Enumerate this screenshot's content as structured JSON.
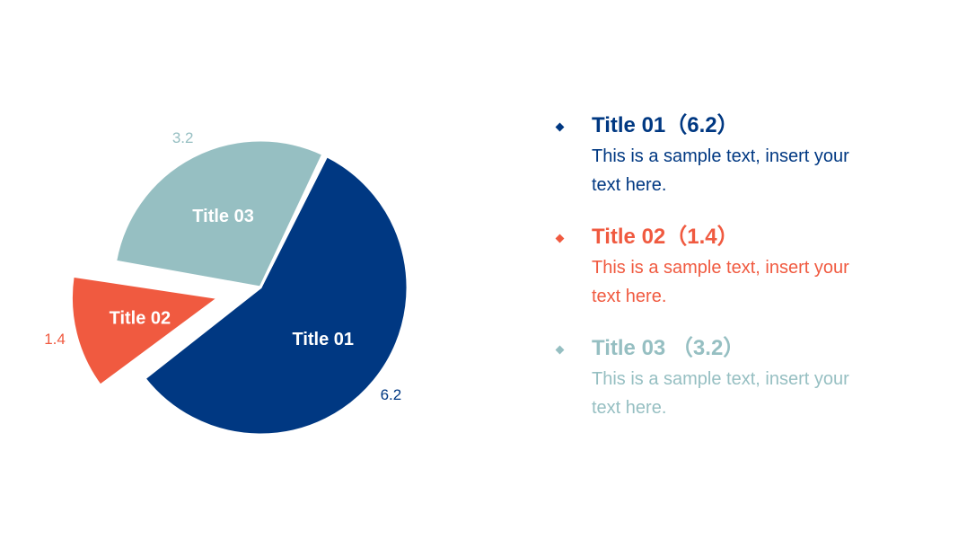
{
  "chart_data": {
    "type": "pie",
    "categories": [
      "Title 01",
      "Title 02",
      "Title 03"
    ],
    "values": [
      6.2,
      1.4,
      3.2
    ],
    "value_labels": [
      "6.2",
      "1.4",
      "3.2"
    ],
    "colors": [
      "#003882",
      "#F05A40",
      "#96BFC2"
    ],
    "exploded": [
      false,
      true,
      false
    ]
  },
  "legend": {
    "items": [
      {
        "title": "Title 01（6.2）",
        "text": "This is a sample text, insert your text here.",
        "color": "#003882"
      },
      {
        "title": "Title 02（1.4）",
        "text": "This is a sample text, insert your text here.",
        "color": "#F05A40"
      },
      {
        "title": "Title 03 （3.2）",
        "text": "This is a sample text, insert your text here.",
        "color": "#96BFC2"
      }
    ]
  }
}
